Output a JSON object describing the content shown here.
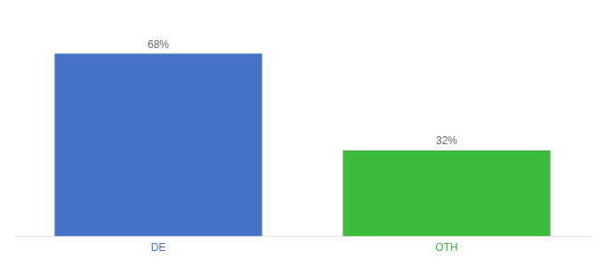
{
  "chart_data": {
    "type": "bar",
    "categories": [
      "DE",
      "OTH"
    ],
    "values": [
      68,
      32
    ],
    "value_labels": [
      "68%",
      "32%"
    ],
    "colors": [
      "#4472c4",
      "#3dbb3d"
    ],
    "ylim": [
      0,
      80
    ],
    "grid": false,
    "data_labels": true,
    "tick_labels": "x"
  }
}
